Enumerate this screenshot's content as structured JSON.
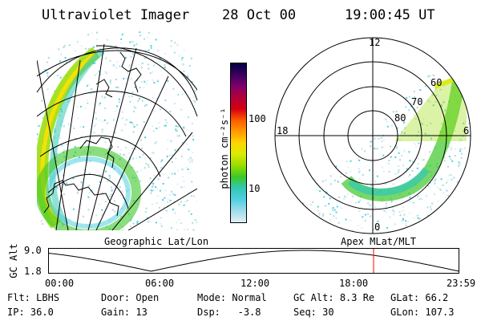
{
  "header": {
    "instrument": "Ultraviolet Imager",
    "date": "28 Oct 00",
    "time": "19:00:45 UT"
  },
  "colorbar": {
    "unit_label": "photon cm⁻²s⁻¹",
    "ticks": [
      "100",
      "10"
    ],
    "colors": [
      "#000040",
      "#3a0060",
      "#80006a",
      "#b0003a",
      "#d40010",
      "#ff5a00",
      "#ff9a00",
      "#ffd400",
      "#d8ec00",
      "#98dc00",
      "#3cc828",
      "#32c8b4",
      "#50d0e0",
      "#a0dcec",
      "#e0f0f4"
    ]
  },
  "left_panel": {
    "caption": "Geographic Lat/Lon"
  },
  "right_panel": {
    "caption": "Apex MLat/MLT",
    "mlt_labels": {
      "top": "12",
      "left": "18",
      "right": "6",
      "bottom": "0"
    },
    "mlat_labels": [
      "60",
      "70",
      "80"
    ]
  },
  "altitude_plot": {
    "ylabel": "GC Alt",
    "y_ticks": [
      "9.0",
      "1.8"
    ],
    "x_ticks": [
      "00:00",
      "06:00",
      "12:00",
      "18:00",
      "23:59"
    ],
    "current_time_hours": 19.01,
    "marker_color": "#ff0000"
  },
  "info": {
    "row1": [
      {
        "label": "Flt:",
        "value": "LBHS"
      },
      {
        "label": "Door:",
        "value": "Open"
      },
      {
        "label": "Mode:",
        "value": "Normal"
      },
      {
        "label": "GC Alt:",
        "value": "8.3 Re"
      },
      {
        "label": "GLat:",
        "value": "66.2"
      }
    ],
    "row2": [
      {
        "label": "IP:",
        "value": "36.0"
      },
      {
        "label": "Gain:",
        "value": "13"
      },
      {
        "label": "Dsp:",
        "value": "-3.8"
      },
      {
        "label": "Seq:",
        "value": "30"
      },
      {
        "label": "GLon:",
        "value": "107.3"
      }
    ]
  }
}
